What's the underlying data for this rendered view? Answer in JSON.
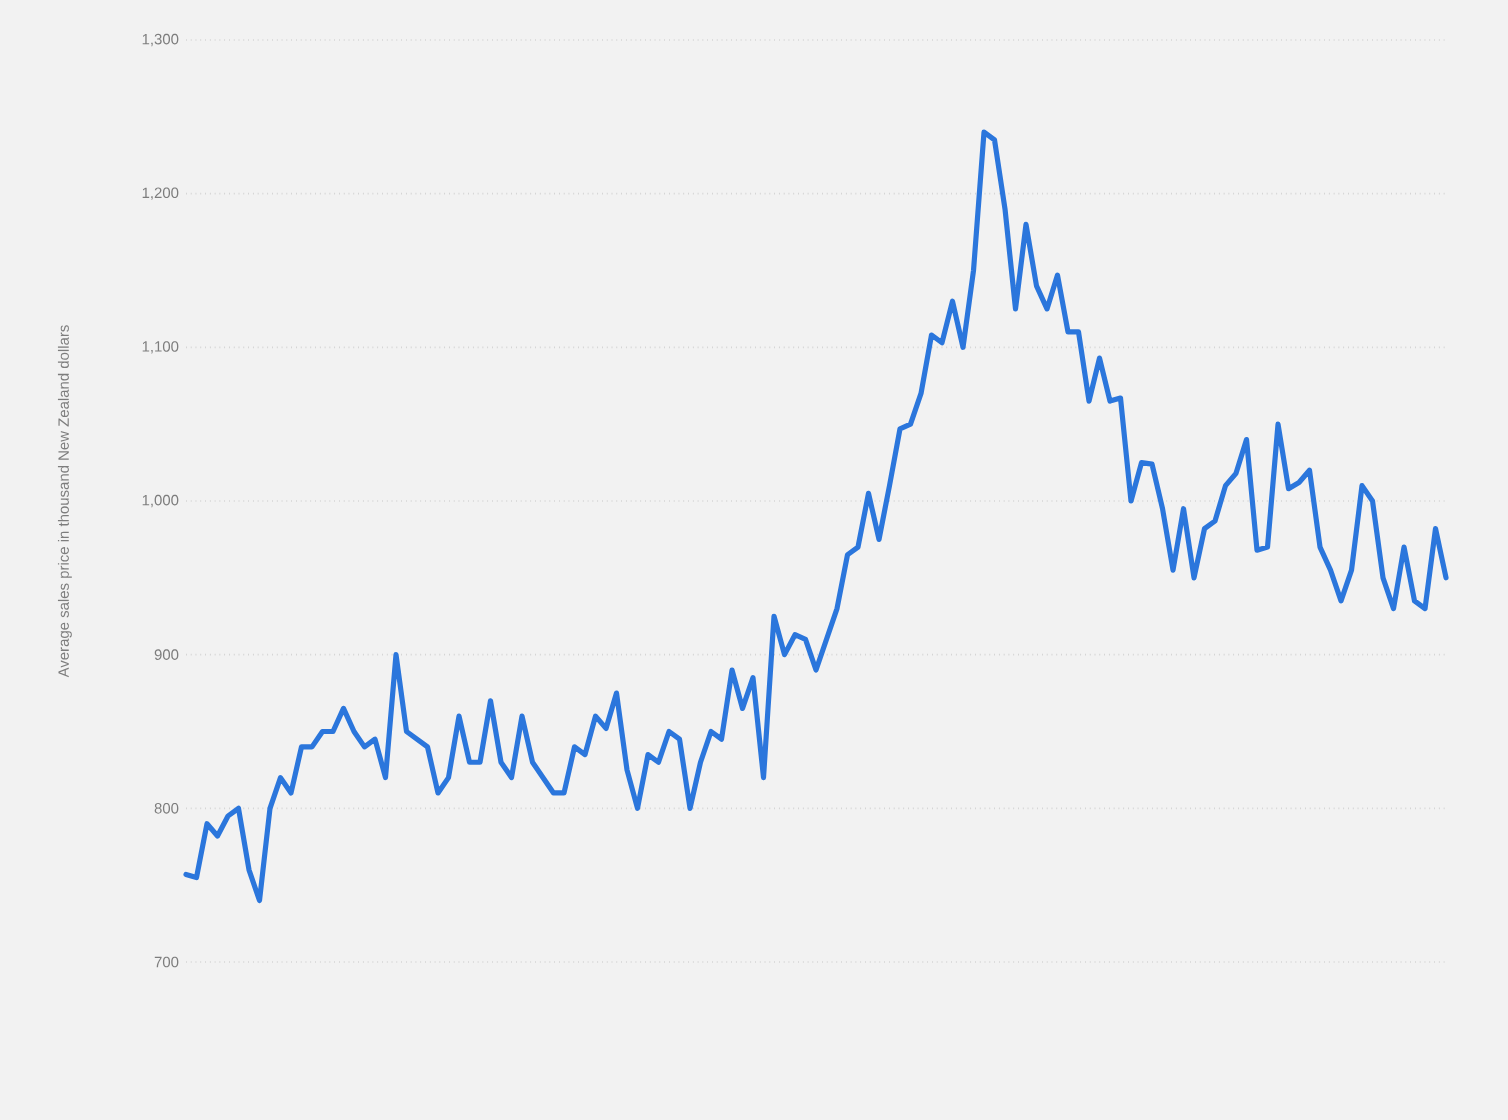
{
  "chart_data": {
    "type": "line",
    "ylabel": "Average sales price in thousand New Zealand dollars",
    "categories": [
      null,
      null,
      null,
      null,
      null,
      null,
      null,
      null,
      null,
      null,
      null,
      null,
      null,
      null,
      null,
      null,
      null,
      null,
      null,
      null,
      null,
      null,
      null,
      null,
      null,
      null,
      null,
      null,
      null,
      null,
      null,
      null,
      null,
      null,
      null,
      null,
      null,
      null,
      null,
      null,
      null,
      null,
      null,
      null,
      null,
      null,
      null,
      null,
      null,
      null,
      null,
      null,
      null,
      null,
      null,
      null,
      null,
      null,
      null,
      null,
      null,
      null,
      null,
      null,
      null,
      null,
      null,
      null,
      null,
      null,
      null,
      null,
      null,
      null,
      null,
      null,
      null,
      null,
      null,
      null,
      null,
      null,
      null,
      null,
      null,
      null,
      null,
      null,
      null,
      null,
      null,
      null,
      null,
      null,
      null,
      null,
      null,
      null,
      null,
      null,
      null,
      null,
      null,
      null,
      null,
      null,
      null,
      null,
      null,
      null,
      null,
      null,
      null,
      null,
      null,
      null,
      null,
      null,
      null,
      null,
      null
    ],
    "series": [
      {
        "color": "#2b76dc",
        "values": [
          757,
          755,
          790,
          782,
          795,
          800,
          760,
          740,
          800,
          820,
          810,
          840,
          840,
          850,
          850,
          865,
          850,
          840,
          845,
          820,
          900,
          850,
          845,
          840,
          810,
          820,
          860,
          830,
          830,
          870,
          830,
          820,
          860,
          830,
          820,
          810,
          810,
          840,
          835,
          860,
          852,
          875,
          825,
          800,
          835,
          830,
          850,
          845,
          800,
          830,
          850,
          845,
          890,
          865,
          885,
          820,
          925,
          900,
          913,
          910,
          890,
          910,
          930,
          965,
          970,
          1005,
          975,
          1010,
          1047,
          1050,
          1070,
          1108,
          1103,
          1130,
          1100,
          1150,
          1240,
          1235,
          1190,
          1125,
          1180,
          1140,
          1125,
          1147,
          1110,
          1110,
          1065,
          1093,
          1065,
          1067,
          1000,
          1025,
          1024,
          995,
          955,
          995,
          950,
          982,
          987,
          1010,
          1018,
          1040,
          968,
          970,
          1050,
          1008,
          1012,
          1020,
          970,
          955,
          935,
          955,
          1010,
          1000,
          950,
          930,
          970,
          935,
          930,
          982,
          950
        ]
      }
    ],
    "ylim": [
      700,
      1300
    ],
    "yticks": [
      700,
      800,
      900,
      {
        "value": 1000,
        "label": "1,000"
      },
      {
        "value": 1100,
        "label": "1,100"
      },
      {
        "value": 1200,
        "label": "1,200"
      },
      {
        "value": 1300,
        "label": "1,300"
      }
    ],
    "grid": "y",
    "tick_labels": "y",
    "marker": "none",
    "line_style": "solid"
  }
}
